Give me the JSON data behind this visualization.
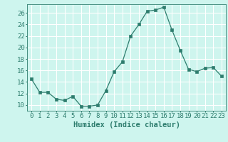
{
  "x": [
    0,
    1,
    2,
    3,
    4,
    5,
    6,
    7,
    8,
    9,
    10,
    11,
    12,
    13,
    14,
    15,
    16,
    17,
    18,
    19,
    20,
    21,
    22,
    23
  ],
  "y": [
    14.5,
    12.2,
    12.2,
    11.0,
    10.8,
    11.5,
    9.8,
    9.8,
    10.0,
    12.5,
    15.8,
    17.5,
    22.0,
    24.0,
    26.3,
    26.5,
    27.0,
    23.0,
    19.5,
    16.2,
    15.8,
    16.4,
    16.5,
    15.0
  ],
  "line_color": "#2e7d6e",
  "marker": "s",
  "marker_size": 2.5,
  "background_color": "#cef5ee",
  "grid_color": "#ffffff",
  "xlabel": "Humidex (Indice chaleur)",
  "ylim": [
    9.0,
    27.5
  ],
  "yticks": [
    10,
    12,
    14,
    16,
    18,
    20,
    22,
    24,
    26
  ],
  "xticks": [
    0,
    1,
    2,
    3,
    4,
    5,
    6,
    7,
    8,
    9,
    10,
    11,
    12,
    13,
    14,
    15,
    16,
    17,
    18,
    19,
    20,
    21,
    22,
    23
  ],
  "xlabel_fontsize": 7.5,
  "tick_fontsize": 6.5,
  "xlim": [
    -0.5,
    23.5
  ]
}
